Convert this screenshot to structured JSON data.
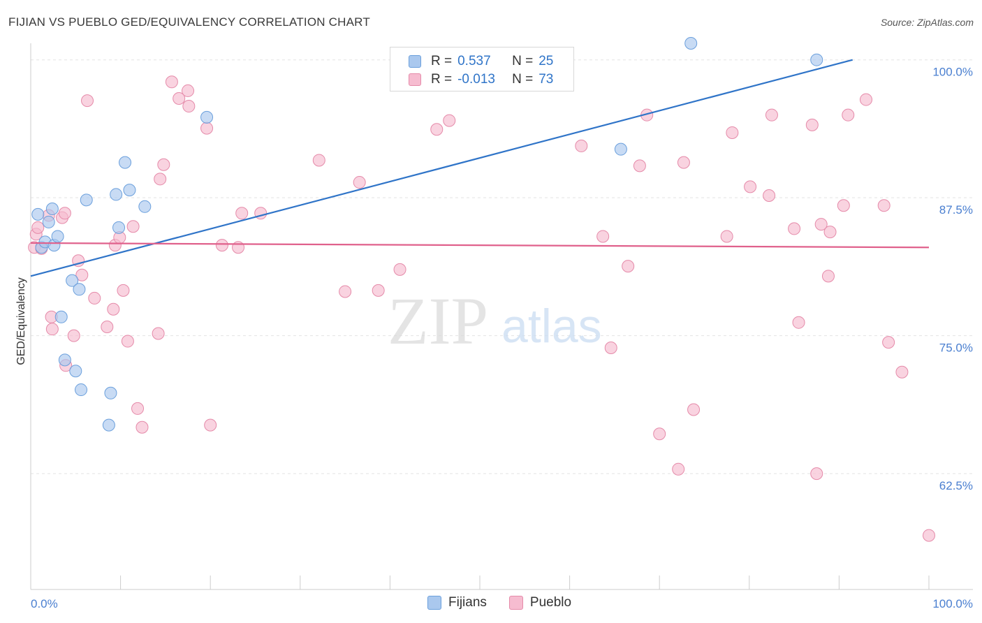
{
  "header": {
    "title": "FIJIAN VS PUEBLO GED/EQUIVALENCY CORRELATION CHART",
    "source": "Source: ZipAtlas.com"
  },
  "watermark": {
    "zip": "ZIP",
    "atlas": "atlas"
  },
  "legend": {
    "rows": [
      {
        "r_label": "R =",
        "r_value": "0.537",
        "n_label": "N =",
        "n_value": "25"
      },
      {
        "r_label": "R =",
        "r_value": "-0.013",
        "n_label": "N =",
        "n_value": "73"
      }
    ],
    "bottom": [
      {
        "label": "Fijians"
      },
      {
        "label": "Pueblo"
      }
    ]
  },
  "colors": {
    "fijians_fill": "#aac8ee",
    "fijians_stroke": "#6a9fdc",
    "fijians_line": "#2f74c8",
    "pueblo_fill": "#f6bcd0",
    "pueblo_stroke": "#e58aa9",
    "pueblo_line": "#e0618c",
    "tick_label": "#4a7fd0",
    "grid": "#e4e4e4"
  },
  "chart_data": {
    "type": "scatter",
    "ylabel": "GED/Equivalency",
    "xlim": [
      0,
      100
    ],
    "ylim": [
      52,
      101.5
    ],
    "x_tick_labels": [
      "0.0%",
      "100.0%"
    ],
    "y_ticks": [
      {
        "value": 62.5,
        "label": "62.5%"
      },
      {
        "value": 75.0,
        "label": "75.0%"
      },
      {
        "value": 87.5,
        "label": "87.5%"
      },
      {
        "value": 100.0,
        "label": "100.0%"
      }
    ],
    "series": [
      {
        "name": "Fijians",
        "trend": {
          "x": [
            0,
            91.5
          ],
          "y": [
            80.4,
            100.0
          ]
        },
        "points": [
          [
            0.8,
            86.0
          ],
          [
            1.2,
            83.0
          ],
          [
            1.6,
            83.5
          ],
          [
            2.0,
            85.3
          ],
          [
            2.4,
            86.5
          ],
          [
            2.6,
            83.2
          ],
          [
            3.0,
            84.0
          ],
          [
            3.4,
            76.7
          ],
          [
            3.8,
            72.8
          ],
          [
            4.6,
            80.0
          ],
          [
            5.0,
            71.8
          ],
          [
            5.4,
            79.2
          ],
          [
            5.6,
            70.1
          ],
          [
            6.2,
            87.3
          ],
          [
            8.7,
            66.9
          ],
          [
            8.9,
            69.8
          ],
          [
            9.5,
            87.8
          ],
          [
            9.8,
            84.8
          ],
          [
            10.5,
            90.7
          ],
          [
            11.0,
            88.2
          ],
          [
            12.7,
            86.7
          ],
          [
            19.6,
            94.8
          ],
          [
            65.7,
            91.9
          ],
          [
            73.5,
            101.5
          ],
          [
            87.5,
            100.0
          ]
        ]
      },
      {
        "name": "Pueblo",
        "trend": {
          "x": [
            0,
            100
          ],
          "y": [
            83.4,
            83.0
          ]
        },
        "points": [
          [
            0.4,
            83.0
          ],
          [
            0.6,
            84.2
          ],
          [
            0.8,
            84.8
          ],
          [
            1.2,
            82.9
          ],
          [
            2.0,
            85.9
          ],
          [
            2.3,
            76.7
          ],
          [
            2.4,
            75.6
          ],
          [
            3.5,
            85.7
          ],
          [
            3.8,
            86.1
          ],
          [
            3.9,
            72.3
          ],
          [
            4.8,
            75.0
          ],
          [
            5.3,
            81.8
          ],
          [
            5.7,
            80.5
          ],
          [
            6.3,
            96.3
          ],
          [
            7.1,
            78.4
          ],
          [
            8.5,
            75.8
          ],
          [
            9.2,
            77.4
          ],
          [
            9.4,
            83.2
          ],
          [
            9.9,
            83.9
          ],
          [
            10.3,
            79.1
          ],
          [
            10.8,
            74.5
          ],
          [
            11.4,
            84.9
          ],
          [
            11.9,
            68.4
          ],
          [
            12.4,
            66.7
          ],
          [
            14.2,
            75.2
          ],
          [
            14.4,
            89.2
          ],
          [
            14.8,
            90.5
          ],
          [
            15.7,
            98.0
          ],
          [
            16.5,
            96.5
          ],
          [
            17.5,
            97.2
          ],
          [
            17.6,
            95.8
          ],
          [
            19.6,
            93.8
          ],
          [
            20.0,
            66.9
          ],
          [
            21.3,
            83.2
          ],
          [
            23.1,
            83.0
          ],
          [
            23.5,
            86.1
          ],
          [
            25.6,
            86.1
          ],
          [
            32.1,
            90.9
          ],
          [
            35.0,
            79.0
          ],
          [
            36.6,
            88.9
          ],
          [
            38.7,
            79.1
          ],
          [
            41.1,
            81.0
          ],
          [
            45.2,
            93.7
          ],
          [
            46.6,
            94.5
          ],
          [
            61.3,
            92.2
          ],
          [
            63.7,
            84.0
          ],
          [
            64.6,
            73.9
          ],
          [
            66.5,
            81.3
          ],
          [
            67.8,
            90.4
          ],
          [
            68.6,
            95.0
          ],
          [
            70.0,
            66.1
          ],
          [
            72.1,
            62.9
          ],
          [
            72.7,
            90.7
          ],
          [
            73.8,
            68.3
          ],
          [
            77.5,
            84.0
          ],
          [
            78.1,
            93.4
          ],
          [
            80.1,
            88.5
          ],
          [
            82.2,
            87.7
          ],
          [
            82.5,
            95.0
          ],
          [
            85.0,
            84.7
          ],
          [
            85.5,
            76.2
          ],
          [
            87.0,
            94.1
          ],
          [
            87.5,
            62.5
          ],
          [
            88.0,
            85.1
          ],
          [
            88.8,
            80.4
          ],
          [
            89.0,
            84.4
          ],
          [
            90.5,
            86.8
          ],
          [
            91.0,
            95.0
          ],
          [
            93.0,
            96.4
          ],
          [
            95.0,
            86.8
          ],
          [
            95.5,
            74.4
          ],
          [
            97.0,
            71.7
          ],
          [
            100.0,
            56.9
          ]
        ]
      }
    ]
  }
}
